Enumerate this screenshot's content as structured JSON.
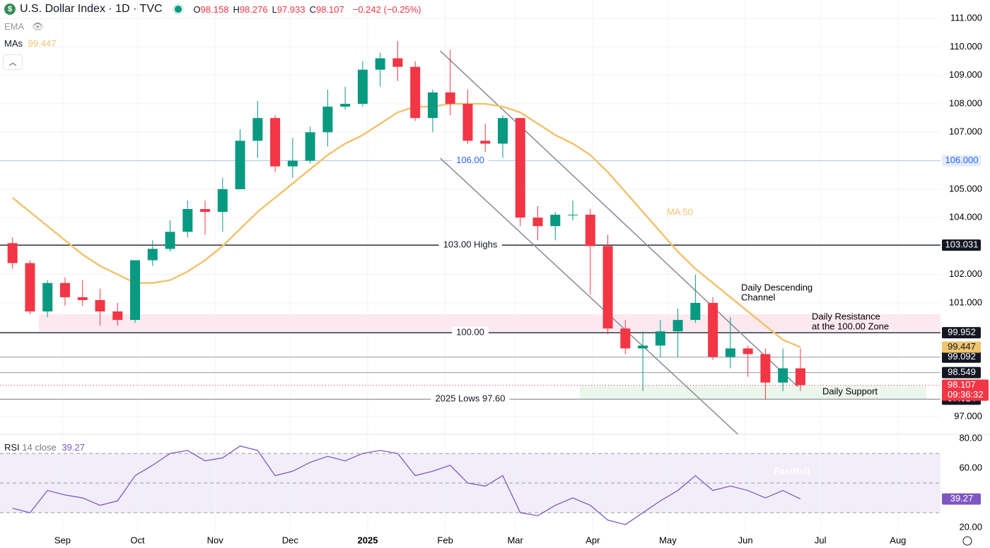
{
  "header": {
    "icon": "$",
    "title": "U.S. Dollar Index · 1D · TVC",
    "ohlc": [
      {
        "key": "O",
        "value": "98.158"
      },
      {
        "key": "H",
        "value": "98.276"
      },
      {
        "key": "L",
        "value": "97.933"
      },
      {
        "key": "C",
        "value": "98.107"
      }
    ],
    "change": "−0.242 (−0.25%)"
  },
  "indicators": {
    "ema": "EMA",
    "mas": "MAs"
  },
  "watermark": "FastBull",
  "chart_data": [
    {
      "type": "candlestick",
      "x": [
        "2024-08-12",
        "2024-08-19",
        "2024-08-26",
        "2024-09-02",
        "2024-09-09",
        "2024-09-16",
        "2024-09-23",
        "2024-09-30",
        "2024-10-07",
        "2024-10-14",
        "2024-10-21",
        "2024-10-28",
        "2024-11-04",
        "2024-11-11",
        "2024-11-18",
        "2024-11-25",
        "2024-12-02",
        "2024-12-09",
        "2024-12-16",
        "2024-12-23",
        "2024-12-30",
        "2025-01-06",
        "2025-01-13",
        "2025-01-20",
        "2025-01-27",
        "2025-02-03",
        "2025-02-10",
        "2025-02-17",
        "2025-02-24",
        "2025-03-03",
        "2025-03-10",
        "2025-03-17",
        "2025-03-24",
        "2025-03-31",
        "2025-04-07",
        "2025-04-14",
        "2025-04-21",
        "2025-04-28",
        "2025-05-05",
        "2025-05-12",
        "2025-05-19",
        "2025-05-26",
        "2025-06-02",
        "2025-06-09",
        "2025-06-16",
        "2025-06-23"
      ],
      "open": [
        103.1,
        102.4,
        100.7,
        101.7,
        101.2,
        101.1,
        100.7,
        100.4,
        102.5,
        102.9,
        103.5,
        104.3,
        104.2,
        105.0,
        106.7,
        107.5,
        105.8,
        106.0,
        107.0,
        107.9,
        108.0,
        109.2,
        109.6,
        109.3,
        107.5,
        108.4,
        108.0,
        106.7,
        106.6,
        107.5,
        104.0,
        103.7,
        104.1,
        104.1,
        103.0,
        100.1,
        99.4,
        99.5,
        100.0,
        100.4,
        101.0,
        99.1,
        99.4,
        99.2,
        98.2,
        98.7
      ],
      "high": [
        103.3,
        102.5,
        101.8,
        101.9,
        101.8,
        101.5,
        101.0,
        102.5,
        103.2,
        103.9,
        104.6,
        104.6,
        105.4,
        107.1,
        108.1,
        107.6,
        106.8,
        107.2,
        108.5,
        108.6,
        109.5,
        109.8,
        110.2,
        109.5,
        108.5,
        109.9,
        108.5,
        107.3,
        107.6,
        107.5,
        104.4,
        104.2,
        104.6,
        104.3,
        103.4,
        100.4,
        100.0,
        100.4,
        100.8,
        102.0,
        101.2,
        100.5,
        99.5,
        99.4,
        99.4,
        99.4
      ],
      "low": [
        102.2,
        100.6,
        100.5,
        100.9,
        100.9,
        100.2,
        100.2,
        100.3,
        102.3,
        102.8,
        103.3,
        103.4,
        103.5,
        105.0,
        106.1,
        105.6,
        105.4,
        105.9,
        106.5,
        107.8,
        107.9,
        108.6,
        108.8,
        107.4,
        107.0,
        107.6,
        106.6,
        106.3,
        106.1,
        103.7,
        103.2,
        103.2,
        103.9,
        101.3,
        99.9,
        99.2,
        97.9,
        99.1,
        99.1,
        100.3,
        99.0,
        98.7,
        98.4,
        97.6,
        97.9,
        97.9
      ],
      "close": [
        102.4,
        100.7,
        101.7,
        101.2,
        101.1,
        100.7,
        100.4,
        102.5,
        102.9,
        103.5,
        104.3,
        104.2,
        105.0,
        106.7,
        107.5,
        105.8,
        106.0,
        107.0,
        107.9,
        108.0,
        109.2,
        109.6,
        109.3,
        107.5,
        108.4,
        108.0,
        106.7,
        106.6,
        107.5,
        104.0,
        103.7,
        104.1,
        104.1,
        103.0,
        100.1,
        99.4,
        99.5,
        100.0,
        100.4,
        101.0,
        99.1,
        99.4,
        99.2,
        98.2,
        98.7,
        98.107
      ],
      "up_color": "#089981",
      "down_color": "#f23645",
      "series": [
        {
          "name": "MA 50",
          "color": "#f0c36d",
          "values": [
            104.7,
            104.2,
            103.7,
            103.2,
            102.7,
            102.3,
            102.0,
            101.7,
            101.7,
            101.8,
            102.1,
            102.5,
            103.0,
            103.6,
            104.2,
            104.7,
            105.2,
            105.7,
            106.2,
            106.6,
            106.9,
            107.3,
            107.7,
            107.9,
            107.9,
            108.0,
            108.0,
            108.0,
            107.9,
            107.7,
            107.3,
            106.9,
            106.6,
            106.2,
            105.6,
            104.9,
            104.2,
            103.5,
            102.8,
            102.2,
            101.7,
            101.2,
            100.7,
            100.2,
            99.7,
            99.447
          ]
        }
      ],
      "xlim": [
        "2024-08-07",
        "2025-08-18"
      ],
      "xticks": [
        {
          "value": "2024-09-01",
          "label": "Sep"
        },
        {
          "value": "2024-10-01",
          "label": "Oct"
        },
        {
          "value": "2024-11-01",
          "label": "Nov"
        },
        {
          "value": "2024-12-01",
          "label": "Dec"
        },
        {
          "value": "2025-01-01",
          "label": "2025"
        },
        {
          "value": "2025-02-01",
          "label": "Feb"
        },
        {
          "value": "2025-03-01",
          "label": "Mar"
        },
        {
          "value": "2025-04-01",
          "label": "Apr"
        },
        {
          "value": "2025-05-01",
          "label": "May"
        },
        {
          "value": "2025-06-01",
          "label": "Jun"
        },
        {
          "value": "2025-07-01",
          "label": "Jul"
        },
        {
          "value": "2025-08-01",
          "label": "Aug"
        }
      ],
      "ylim": [
        96.38,
        111.65
      ],
      "yticks": [
        {
          "value": 111,
          "label": "111.000"
        },
        {
          "value": 110,
          "label": "110.000"
        },
        {
          "value": 109,
          "label": "109.000"
        },
        {
          "value": 108,
          "label": "108.000"
        },
        {
          "value": 107,
          "label": "107.000"
        },
        {
          "value": 105,
          "label": "105.000"
        },
        {
          "value": 104,
          "label": "104.000"
        },
        {
          "value": 102,
          "label": "102.000"
        },
        {
          "value": 101,
          "label": "101.000"
        },
        {
          "value": 97,
          "label": "97.000"
        }
      ],
      "grid": true,
      "levels": [
        {
          "value": 106,
          "label": "106.000",
          "note": "106.00",
          "line": "#b2c6e6",
          "bg": "#e3ecfd",
          "fg": "#2962ff"
        },
        {
          "value": 103.031,
          "label": "103.031",
          "note": "103.00 Highs",
          "line": "#2a2e39",
          "bg": "#131722",
          "fg": "#ffffff"
        },
        {
          "value": 99.952,
          "label": "99.952",
          "note": "100.00",
          "line": "#2a2e39",
          "bg": "#131722",
          "fg": "#ffffff"
        },
        {
          "value": 99.092,
          "label": "99.092",
          "line": "#9598a1",
          "bg": "#131722",
          "fg": "#ffffff"
        },
        {
          "value": 98.549,
          "label": "98.549",
          "line": "#9598a1",
          "bg": "#131722",
          "fg": "#ffffff"
        },
        {
          "value": 97.614,
          "label": "97.614",
          "note": "2025 Lows 97.60",
          "line": "#787b86",
          "bg": "#131722",
          "fg": "#ffffff"
        }
      ],
      "countdown": "09:36:32",
      "zones": [
        {
          "range": [
            100.0,
            100.6
          ],
          "color": "#fce4ec"
        },
        {
          "range": [
            97.6,
            98.1
          ],
          "color": "#e8f5e9"
        }
      ],
      "channel": [
        {
          "from": [
            "2025-01-30",
            109.86
          ],
          "to": [
            "2025-06-22",
            98.05
          ]
        },
        {
          "from": [
            "2025-01-30",
            106.09
          ],
          "to": [
            "2025-05-29",
            96.38
          ]
        }
      ],
      "annotations": [
        {
          "lines": [
            "Daily Descending",
            "Channel"
          ]
        },
        {
          "lines": [
            "Daily Resistance",
            "at the 100.00 Zone"
          ]
        },
        {
          "lines": [
            "Daily Support"
          ]
        }
      ]
    },
    {
      "type": "line",
      "title": "RSI",
      "params": "14 close",
      "x": [
        "2024-08-12",
        "2024-08-19",
        "2024-08-26",
        "2024-09-02",
        "2024-09-09",
        "2024-09-16",
        "2024-09-23",
        "2024-09-30",
        "2024-10-07",
        "2024-10-14",
        "2024-10-21",
        "2024-10-28",
        "2024-11-04",
        "2024-11-11",
        "2024-11-18",
        "2024-11-25",
        "2024-12-02",
        "2024-12-09",
        "2024-12-16",
        "2024-12-23",
        "2024-12-30",
        "2025-01-06",
        "2025-01-13",
        "2025-01-20",
        "2025-01-27",
        "2025-02-03",
        "2025-02-10",
        "2025-02-17",
        "2025-02-24",
        "2025-03-03",
        "2025-03-10",
        "2025-03-17",
        "2025-03-24",
        "2025-03-31",
        "2025-04-07",
        "2025-04-14",
        "2025-04-21",
        "2025-04-28",
        "2025-05-05",
        "2025-05-12",
        "2025-05-19",
        "2025-05-26",
        "2025-06-02",
        "2025-06-09",
        "2025-06-16",
        "2025-06-23"
      ],
      "series": [
        {
          "name": "RSI 14 close",
          "color": "#7e57c2",
          "values": [
            33,
            30,
            45,
            42,
            40,
            35,
            38,
            55,
            62,
            70,
            72,
            65,
            67,
            75,
            72,
            55,
            58,
            64,
            68,
            65,
            70,
            72,
            70,
            55,
            58,
            62,
            50,
            48,
            55,
            30,
            28,
            35,
            40,
            35,
            25,
            22,
            30,
            38,
            45,
            55,
            45,
            48,
            45,
            40,
            45,
            39.27
          ]
        }
      ],
      "xlim": [
        "2024-08-07",
        "2025-08-18"
      ],
      "ylim": [
        6.2,
        82.9
      ],
      "yticks": [
        {
          "value": 80,
          "label": "80.00"
        },
        {
          "value": 60,
          "label": "60.00"
        },
        {
          "value": 20,
          "label": "20.00"
        }
      ],
      "band": [
        30,
        70
      ],
      "dashed": [
        70,
        50,
        30
      ]
    }
  ]
}
